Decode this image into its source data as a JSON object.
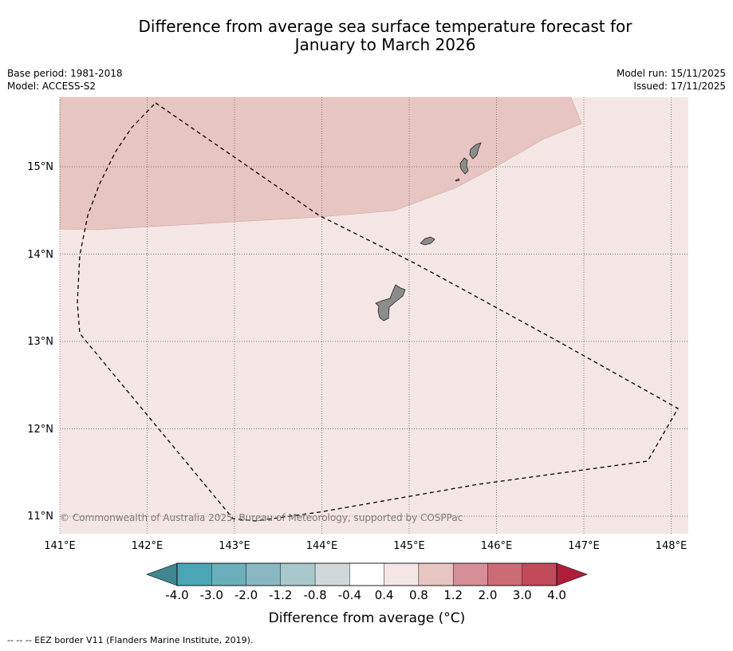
{
  "title_line1": "Difference from average sea surface temperature forecast for",
  "title_line2": "January to March 2026",
  "base_period": "Base period: 1981-2018",
  "model": "Model: ACCESS-S2",
  "model_run": "Model run: 15/11/2025",
  "issued": "Issued: 17/11/2025",
  "map": {
    "lon_labels": [
      "141°E",
      "142°E",
      "143°E",
      "144°E",
      "145°E",
      "146°E",
      "147°E",
      "148°E"
    ],
    "lat_labels": [
      "15°N",
      "14°N",
      "13°N",
      "12°N",
      "11°N"
    ],
    "lon_range": [
      141.0,
      148.2
    ],
    "lat_range": [
      10.8,
      15.8
    ],
    "copyright": "© Commonwealth of Australia 2025, Bureau of Meteorology, supported by COSPPac",
    "regions": [
      {
        "name": "0.4 to 0.8",
        "color": "#f4e6e5"
      },
      {
        "name": "0.8 to 1.2",
        "color": "#e7c5c1"
      }
    ],
    "land_color": "#8c8c8c"
  },
  "colorbar": {
    "labels": [
      "-4.0",
      "-3.0",
      "-2.0",
      "-1.2",
      "-0.8",
      "-0.4",
      "0.4",
      "0.8",
      "1.2",
      "2.0",
      "3.0",
      "4.0"
    ],
    "colors": [
      "#4aa6b5",
      "#6bafbc",
      "#89b8c2",
      "#a9c8cb",
      "#d0d8db",
      "#ffffff",
      "#f4e6e5",
      "#e7c5c1",
      "#d68f96",
      "#cc6b76",
      "#c24a5a"
    ],
    "under_color": "#3f8690",
    "over_color": "#b01e3c",
    "title": "Difference from average (°C)"
  },
  "footnote": "--  --  -- EEZ border V11 (Flanders Marine Institute, 2019)."
}
